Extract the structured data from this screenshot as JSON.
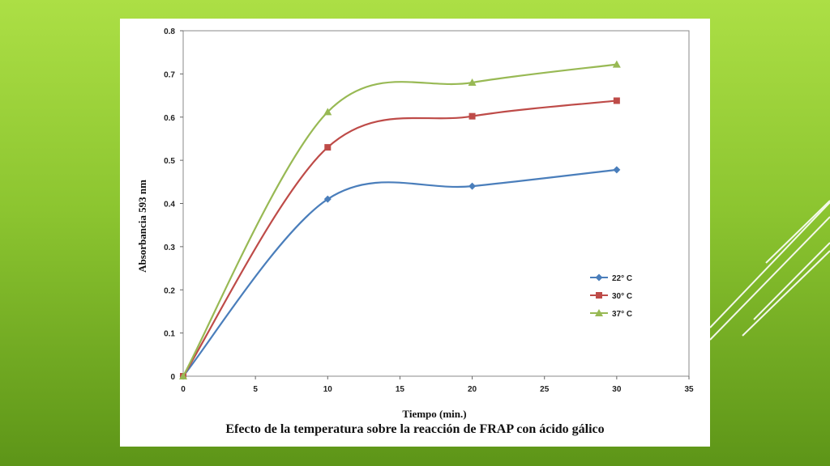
{
  "caption": "Efecto de la temperatura sobre la reacción de FRAP con ácido gálico",
  "chart_data": {
    "type": "line",
    "title": "",
    "xlabel": "Tiempo (min.)",
    "ylabel": "Absorbancia 593 nm",
    "xlim": [
      0,
      35
    ],
    "ylim": [
      0,
      0.8
    ],
    "x_ticks": [
      "0",
      "5",
      "10",
      "15",
      "20",
      "25",
      "30",
      "35"
    ],
    "y_ticks": [
      "0",
      "0.1",
      "0.2",
      "0.3",
      "0.4",
      "0.5",
      "0.6",
      "0.7",
      "0.8"
    ],
    "grid": false,
    "smooth": true,
    "legend_position": "bottom-right",
    "x": [
      0,
      10,
      20,
      30
    ],
    "series": [
      {
        "name": "22° C",
        "values": [
          0,
          0.41,
          0.44,
          0.478
        ],
        "color": "#4a7ebb",
        "marker": "diamond"
      },
      {
        "name": "30° C",
        "values": [
          0,
          0.53,
          0.602,
          0.638
        ],
        "color": "#be4b48",
        "marker": "square"
      },
      {
        "name": "37° C",
        "values": [
          0,
          0.612,
          0.68,
          0.722
        ],
        "color": "#98b954",
        "marker": "triangle"
      }
    ]
  }
}
